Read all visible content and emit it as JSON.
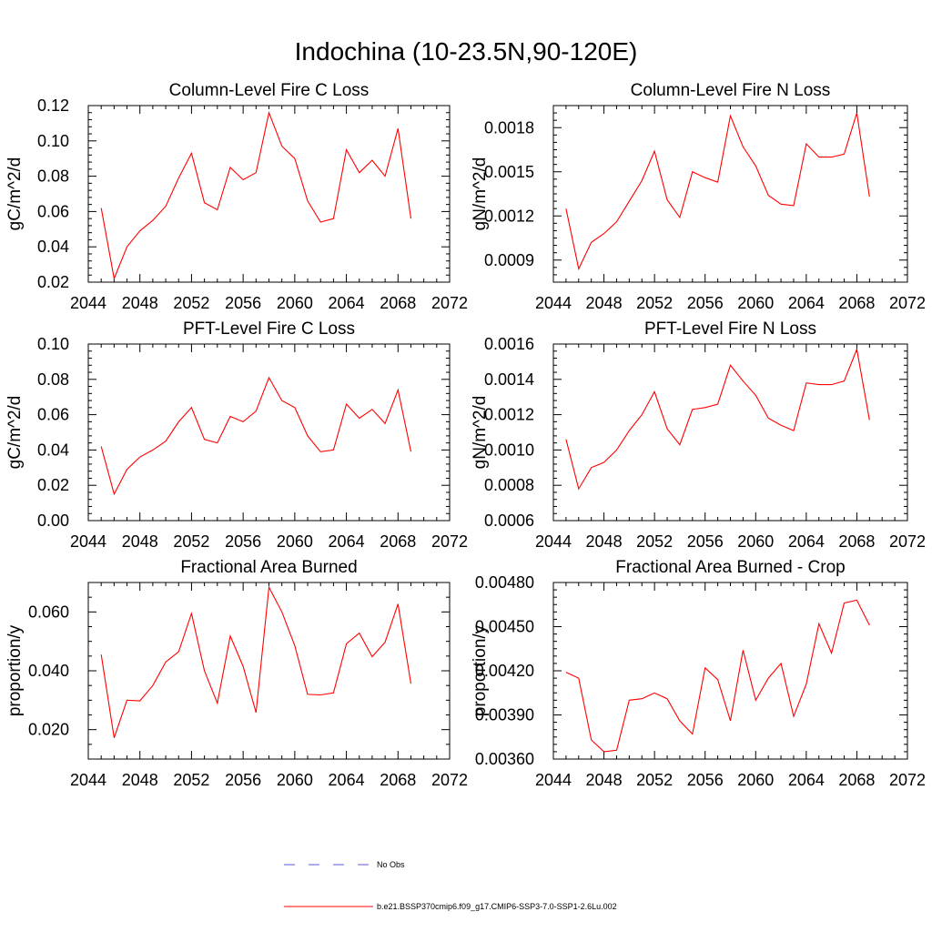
{
  "figure": {
    "title": "Indochina (10-23.5N,90-120E)",
    "legend": [
      {
        "label": "No Obs",
        "color": "#5a5ae0",
        "dash": "dashed"
      },
      {
        "label": "b.e21.BSSP370cmip6.f09_g17.CMIP6-SSP3-7.0-SSP1-2.6Lu.002",
        "color": "#ff0000",
        "dash": "solid"
      }
    ]
  },
  "chart_data": [
    {
      "type": "line",
      "title": "Column-Level Fire C Loss",
      "xlabel": "",
      "ylabel": "gC/m^2/d",
      "xlim": [
        2044,
        2072
      ],
      "ylim": [
        0.02,
        0.12
      ],
      "xticks": [
        2044,
        2048,
        2052,
        2056,
        2060,
        2064,
        2068,
        2072
      ],
      "yticks": [
        0.02,
        0.04,
        0.06,
        0.08,
        0.1,
        0.12
      ],
      "yticklabels": [
        "0.02",
        "0.04",
        "0.06",
        "0.08",
        "0.10",
        "0.12"
      ],
      "ymajor_step": 0.02,
      "yminor_per_major": 5,
      "x": [
        2045,
        2046,
        2047,
        2048,
        2049,
        2050,
        2051,
        2052,
        2053,
        2054,
        2055,
        2056,
        2057,
        2058,
        2059,
        2060,
        2061,
        2062,
        2063,
        2064,
        2065,
        2066,
        2067,
        2068,
        2069
      ],
      "series": [
        {
          "values": [
            0.062,
            0.022,
            0.04,
            0.049,
            0.055,
            0.063,
            0.079,
            0.093,
            0.065,
            0.061,
            0.085,
            0.078,
            0.082,
            0.116,
            0.097,
            0.09,
            0.066,
            0.054,
            0.056,
            0.095,
            0.082,
            0.089,
            0.08,
            0.107,
            0.056
          ],
          "color": "#ff0000"
        }
      ]
    },
    {
      "type": "line",
      "title": "Column-Level Fire N Loss",
      "xlabel": "",
      "ylabel": "gN/m^2/d",
      "xlim": [
        2044,
        2072
      ],
      "ylim": [
        0.00075,
        0.00195
      ],
      "xticks": [
        2044,
        2048,
        2052,
        2056,
        2060,
        2064,
        2068,
        2072
      ],
      "yticks": [
        0.0009,
        0.0012,
        0.0015,
        0.0018
      ],
      "yticklabels": [
        "0.0009",
        "0.0012",
        "0.0015",
        "0.0018"
      ],
      "ymajor_step": 0.0003,
      "yminor_per_major": 6,
      "x": [
        2045,
        2046,
        2047,
        2048,
        2049,
        2050,
        2051,
        2052,
        2053,
        2054,
        2055,
        2056,
        2057,
        2058,
        2059,
        2060,
        2061,
        2062,
        2063,
        2064,
        2065,
        2066,
        2067,
        2068,
        2069
      ],
      "series": [
        {
          "values": [
            0.00125,
            0.00084,
            0.00102,
            0.00108,
            0.00116,
            0.0013,
            0.00144,
            0.00164,
            0.00131,
            0.00119,
            0.0015,
            0.00146,
            0.00143,
            0.00188,
            0.00167,
            0.00154,
            0.00134,
            0.00128,
            0.00127,
            0.00169,
            0.0016,
            0.0016,
            0.00162,
            0.0019,
            0.00133
          ],
          "color": "#ff0000"
        }
      ]
    },
    {
      "type": "line",
      "title": "PFT-Level Fire C Loss",
      "xlabel": "",
      "ylabel": "gC/m^2/d",
      "xlim": [
        2044,
        2072
      ],
      "ylim": [
        0.0,
        0.1
      ],
      "xticks": [
        2044,
        2048,
        2052,
        2056,
        2060,
        2064,
        2068,
        2072
      ],
      "yticks": [
        0.0,
        0.02,
        0.04,
        0.06,
        0.08,
        0.1
      ],
      "yticklabels": [
        "0.00",
        "0.02",
        "0.04",
        "0.06",
        "0.08",
        "0.10"
      ],
      "ymajor_step": 0.02,
      "yminor_per_major": 5,
      "x": [
        2045,
        2046,
        2047,
        2048,
        2049,
        2050,
        2051,
        2052,
        2053,
        2054,
        2055,
        2056,
        2057,
        2058,
        2059,
        2060,
        2061,
        2062,
        2063,
        2064,
        2065,
        2066,
        2067,
        2068,
        2069
      ],
      "series": [
        {
          "values": [
            0.042,
            0.015,
            0.029,
            0.036,
            0.04,
            0.045,
            0.056,
            0.064,
            0.046,
            0.044,
            0.059,
            0.056,
            0.062,
            0.081,
            0.068,
            0.064,
            0.048,
            0.039,
            0.04,
            0.066,
            0.058,
            0.063,
            0.055,
            0.074,
            0.039
          ],
          "color": "#ff0000"
        }
      ]
    },
    {
      "type": "line",
      "title": "PFT-Level Fire N Loss",
      "xlabel": "",
      "ylabel": "gN/m^2/d",
      "xlim": [
        2044,
        2072
      ],
      "ylim": [
        0.0006,
        0.0016
      ],
      "xticks": [
        2044,
        2048,
        2052,
        2056,
        2060,
        2064,
        2068,
        2072
      ],
      "yticks": [
        0.0006,
        0.0008,
        0.001,
        0.0012,
        0.0014,
        0.0016
      ],
      "yticklabels": [
        "0.0006",
        "0.0008",
        "0.0010",
        "0.0012",
        "0.0014",
        "0.0016"
      ],
      "ymajor_step": 0.0002,
      "yminor_per_major": 5,
      "x": [
        2045,
        2046,
        2047,
        2048,
        2049,
        2050,
        2051,
        2052,
        2053,
        2054,
        2055,
        2056,
        2057,
        2058,
        2059,
        2060,
        2061,
        2062,
        2063,
        2064,
        2065,
        2066,
        2067,
        2068,
        2069
      ],
      "series": [
        {
          "values": [
            0.00106,
            0.00078,
            0.0009,
            0.00093,
            0.001,
            0.00111,
            0.0012,
            0.00133,
            0.00112,
            0.00103,
            0.00123,
            0.00124,
            0.00126,
            0.00148,
            0.00139,
            0.00131,
            0.00118,
            0.00114,
            0.00111,
            0.00138,
            0.00137,
            0.00137,
            0.00139,
            0.00157,
            0.00117
          ],
          "color": "#ff0000"
        }
      ]
    },
    {
      "type": "line",
      "title": "Fractional Area Burned",
      "xlabel": "",
      "ylabel": "proportion/y",
      "xlim": [
        2044,
        2072
      ],
      "ylim": [
        0.01,
        0.07
      ],
      "xticks": [
        2044,
        2048,
        2052,
        2056,
        2060,
        2064,
        2068,
        2072
      ],
      "yticks": [
        0.02,
        0.04,
        0.06
      ],
      "yticklabels": [
        "0.020",
        "0.040",
        "0.060"
      ],
      "ymajor_step": 0.02,
      "yminor_per_major": 4,
      "x": [
        2045,
        2046,
        2047,
        2048,
        2049,
        2050,
        2051,
        2052,
        2053,
        2054,
        2055,
        2056,
        2057,
        2058,
        2059,
        2060,
        2061,
        2062,
        2063,
        2064,
        2065,
        2066,
        2067,
        2068,
        2069
      ],
      "series": [
        {
          "values": [
            0.0455,
            0.0172,
            0.03,
            0.0298,
            0.035,
            0.043,
            0.0465,
            0.0595,
            0.04,
            0.029,
            0.0518,
            0.0415,
            0.0258,
            0.0684,
            0.06,
            0.0485,
            0.032,
            0.0318,
            0.0325,
            0.0492,
            0.0528,
            0.0448,
            0.0497,
            0.0627,
            0.0356
          ],
          "color": "#ff0000"
        }
      ]
    },
    {
      "type": "line",
      "title": "Fractional Area Burned - Crop",
      "xlabel": "",
      "ylabel": "proportion/y",
      "xlim": [
        2044,
        2072
      ],
      "ylim": [
        0.0036,
        0.0048
      ],
      "xticks": [
        2044,
        2048,
        2052,
        2056,
        2060,
        2064,
        2068,
        2072
      ],
      "yticks": [
        0.0036,
        0.0039,
        0.0042,
        0.0045,
        0.0048
      ],
      "yticklabels": [
        "0.00360",
        "0.00390",
        "0.00420",
        "0.00450",
        "0.00480"
      ],
      "ymajor_step": 0.0003,
      "yminor_per_major": 6,
      "x": [
        2045,
        2046,
        2047,
        2048,
        2049,
        2050,
        2051,
        2052,
        2053,
        2054,
        2055,
        2056,
        2057,
        2058,
        2059,
        2060,
        2061,
        2062,
        2063,
        2064,
        2065,
        2066,
        2067,
        2068,
        2069
      ],
      "series": [
        {
          "values": [
            0.00419,
            0.00415,
            0.00373,
            0.00365,
            0.00366,
            0.004,
            0.00401,
            0.00405,
            0.00401,
            0.00386,
            0.00377,
            0.00422,
            0.00414,
            0.00386,
            0.00434,
            0.004,
            0.00415,
            0.00425,
            0.00389,
            0.00411,
            0.00452,
            0.00432,
            0.00466,
            0.00468,
            0.00451
          ],
          "color": "#ff0000"
        }
      ]
    }
  ]
}
